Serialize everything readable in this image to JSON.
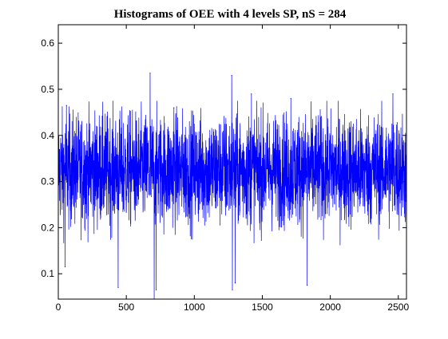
{
  "chart_data": {
    "type": "line",
    "title": "Histograms of OEE with 4 levels SP, nS = 284",
    "xlabel": "",
    "ylabel": "",
    "xlim": [
      0,
      2560
    ],
    "ylim": [
      0.045,
      0.64
    ],
    "x_ticks": [
      0,
      500,
      1000,
      1500,
      2000,
      2500
    ],
    "y_ticks": [
      0.1,
      0.2,
      0.3,
      0.4,
      0.5,
      0.6
    ],
    "x_tick_labels": [
      "0",
      "500",
      "1000",
      "1500",
      "2000",
      "2500"
    ],
    "y_tick_labels": [
      "0.1",
      "0.2",
      "0.3",
      "0.4",
      "0.5",
      "0.6"
    ],
    "grid": false,
    "legend": "none",
    "series": [
      {
        "color": "#0000ff",
        "n_points": 2560,
        "center": 0.325,
        "spread": 0.06,
        "range": [
          0.045,
          0.535
        ],
        "notable_points": [
          {
            "x": 50,
            "y": 0.115
          },
          {
            "x": 60,
            "y": 0.465
          },
          {
            "x": 440,
            "y": 0.07
          },
          {
            "x": 675,
            "y": 0.535
          },
          {
            "x": 705,
            "y": 0.045
          },
          {
            "x": 720,
            "y": 0.065
          },
          {
            "x": 850,
            "y": 0.46
          },
          {
            "x": 1275,
            "y": 0.53
          },
          {
            "x": 1280,
            "y": 0.065
          },
          {
            "x": 1300,
            "y": 0.08
          },
          {
            "x": 1420,
            "y": 0.49
          },
          {
            "x": 1710,
            "y": 0.48
          },
          {
            "x": 1830,
            "y": 0.075
          },
          {
            "x": 2460,
            "y": 0.49
          }
        ]
      }
    ]
  }
}
